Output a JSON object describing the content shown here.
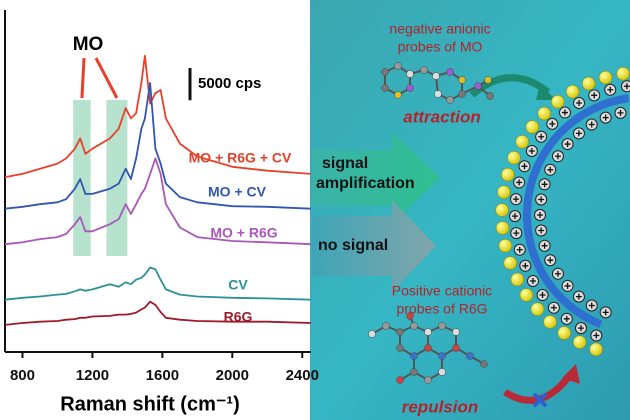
{
  "chart_data": {
    "type": "line",
    "annotation": "MO",
    "xlabel": "Raman shift (cm⁻¹)",
    "x": [
      700,
      800,
      900,
      1000,
      1050,
      1100,
      1130,
      1160,
      1200,
      1300,
      1350,
      1390,
      1420,
      1450,
      1480,
      1500,
      1530,
      1560,
      1590,
      1620,
      1700,
      1800,
      2000,
      2200,
      2450
    ],
    "series": [
      {
        "name": "MO + R6G + CV",
        "color": "#e8412b",
        "values": [
          27100,
          27600,
          28400,
          29200,
          30000,
          31500,
          33100,
          30700,
          31500,
          33100,
          34600,
          37800,
          36200,
          37000,
          41700,
          45900,
          38500,
          40100,
          40600,
          36200,
          32300,
          30300,
          28700,
          28100,
          27600
        ]
      },
      {
        "name": "MO + CV",
        "color": "#2f56b0",
        "values": [
          22200,
          22500,
          22900,
          23200,
          23700,
          25300,
          26800,
          24500,
          24500,
          25300,
          26100,
          28400,
          26800,
          30000,
          34600,
          36200,
          41700,
          31500,
          29200,
          26100,
          24000,
          23200,
          22600,
          22500,
          22200
        ]
      },
      {
        "name": "MO + R6G",
        "color": "#a957b8",
        "values": [
          16700,
          17000,
          17500,
          17800,
          18300,
          19800,
          20900,
          18700,
          18700,
          19800,
          20600,
          22900,
          21400,
          22900,
          24500,
          25300,
          27600,
          30000,
          27600,
          22900,
          19300,
          17800,
          17200,
          17000,
          16700
        ]
      },
      {
        "name": "CV",
        "color": "#2b9198",
        "values": [
          8100,
          8400,
          8600,
          8900,
          9000,
          9400,
          9700,
          9500,
          9700,
          10500,
          10100,
          10800,
          10500,
          11200,
          11500,
          12000,
          13100,
          12800,
          11200,
          9700,
          8900,
          8600,
          8400,
          8300,
          8100
        ]
      },
      {
        "name": "R6G",
        "color": "#a0192a",
        "values": [
          4200,
          4500,
          4700,
          4800,
          5000,
          5100,
          5300,
          5300,
          5500,
          5600,
          5800,
          5800,
          5900,
          6100,
          6600,
          6900,
          7800,
          7300,
          6200,
          5300,
          5000,
          4800,
          4700,
          4700,
          4500
        ]
      }
    ],
    "xlim": [
      700,
      2450
    ],
    "xticks": [
      800,
      1200,
      1600,
      2000,
      2400
    ],
    "ylim": [
      0,
      53000
    ],
    "scale_bar": {
      "value": 5000,
      "label": "5000 cps"
    },
    "highlight_bands": [
      [
        1090,
        1190
      ],
      [
        1280,
        1400
      ]
    ],
    "highlight_color": "#9fd9bd"
  },
  "diagram": {
    "anionic_probe": [
      "negative anionic",
      "probes of MO"
    ],
    "attraction": "attraction",
    "signal_arrow": [
      "signal",
      "amplification"
    ],
    "no_signal_arrow": "no signal",
    "cationic_probe": [
      "Positive cationic",
      "probes of R6G"
    ],
    "repulsion": "repulsion"
  }
}
